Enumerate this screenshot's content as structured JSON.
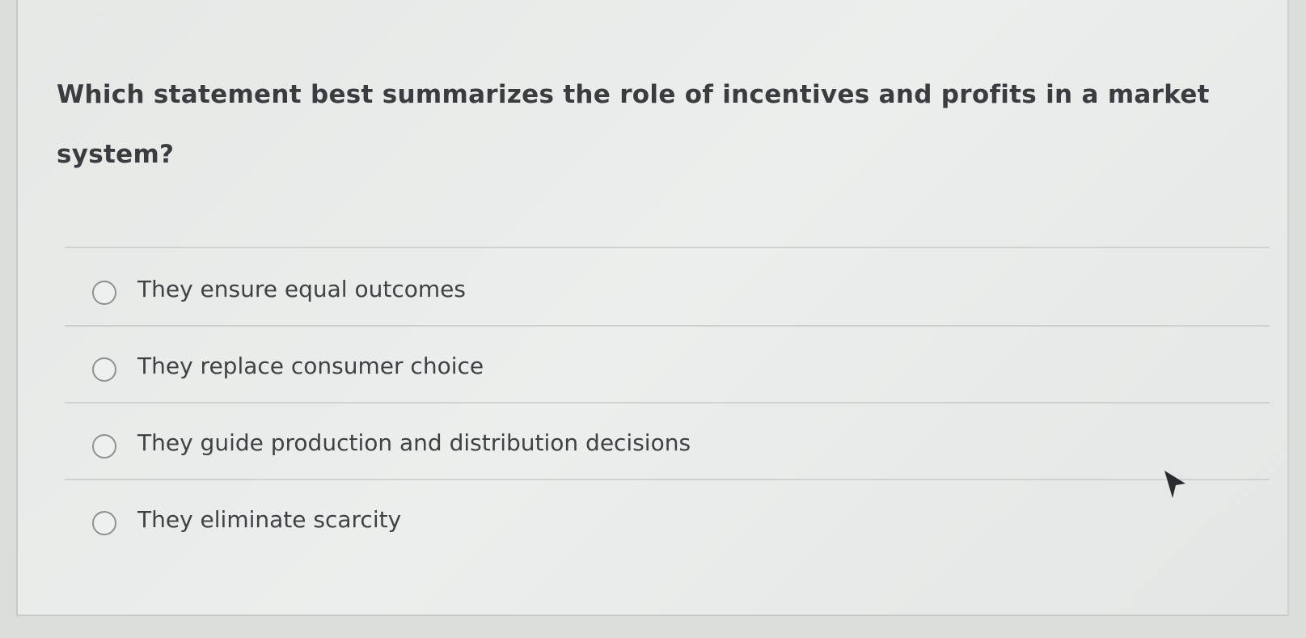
{
  "question": {
    "text": "Which statement best summarizes the role of incentives and profits in a market system?"
  },
  "options": [
    {
      "label": "They ensure equal outcomes",
      "selected": false
    },
    {
      "label": "They replace consumer choice",
      "selected": false
    },
    {
      "label": "They guide production and distribution decisions",
      "selected": false
    },
    {
      "label": "They eliminate scarcity",
      "selected": false
    }
  ]
}
